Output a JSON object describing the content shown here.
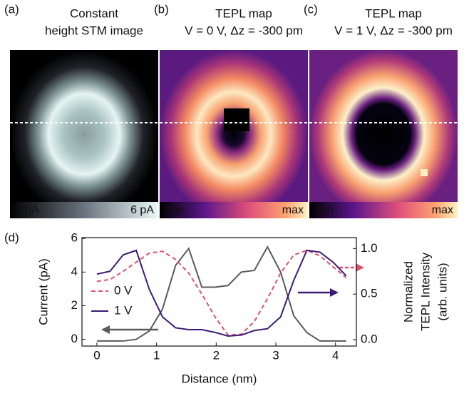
{
  "figure_panels": [
    {
      "label": "(a)",
      "title": [
        "Constant",
        "height STM image"
      ],
      "colorbar": [
        "0 pA",
        "6 pA"
      ]
    },
    {
      "label": "(b)",
      "title": [
        "TEPL map",
        "V = 0 V, Δz = -300 pm"
      ],
      "colorbar": [
        "min",
        "max"
      ]
    },
    {
      "label": "(c)",
      "title": [
        "TEPL map",
        "V = 1 V, Δz = -300 pm"
      ],
      "colorbar": [
        "min",
        "max"
      ]
    }
  ],
  "chart_data": {
    "type": "line",
    "panel_label": "(d)",
    "x_label": "Distance (nm)",
    "y_label": "Current (pA)",
    "y2_label": [
      "Normalized",
      "TEPL Intensity",
      "(arb. units)"
    ],
    "x": [
      0,
      0.22,
      0.44,
      0.66,
      0.88,
      1.1,
      1.32,
      1.54,
      1.76,
      1.98,
      2.2,
      2.42,
      2.64,
      2.86,
      3.08,
      3.3,
      3.52,
      3.74,
      3.96,
      4.18
    ],
    "series": [
      {
        "color": "#5a5a5a",
        "dash": false,
        "values": [
          -0.1,
          -0.1,
          -0.1,
          0.0,
          0.5,
          1.8,
          4.4,
          5.4,
          3.1,
          3.1,
          3.2,
          4.0,
          4.1,
          5.5,
          4.0,
          1.4,
          0.4,
          -0.1,
          -0.1,
          -0.1
        ]
      },
      {
        "name": "0 V",
        "color": "#e0506a",
        "dash": true,
        "axis": "y2",
        "values": [
          0.64,
          0.66,
          0.75,
          0.85,
          0.95,
          0.97,
          0.88,
          0.73,
          0.5,
          0.25,
          0.05,
          0.06,
          0.2,
          0.45,
          0.73,
          0.93,
          0.98,
          0.92,
          0.8,
          0.68
        ]
      },
      {
        "name": "1 V",
        "color": "#3d1a78",
        "dash": false,
        "axis": "y2",
        "values": [
          0.72,
          0.75,
          0.93,
          0.98,
          0.55,
          0.25,
          0.13,
          0.11,
          0.11,
          0.08,
          0.04,
          0.05,
          0.1,
          0.12,
          0.25,
          0.65,
          0.98,
          0.96,
          0.85,
          0.7
        ]
      }
    ],
    "xlim": [
      -0.25,
      4.35
    ],
    "xticks": [
      0,
      1,
      2,
      3,
      4
    ],
    "ylim": [
      -0.4,
      6.05
    ],
    "yticks": [
      0,
      2,
      4,
      6
    ],
    "y2lim": [
      -0.07,
      1.12
    ],
    "y2ticks": [
      {
        "value": 0,
        "label": "0.0"
      },
      0.5,
      {
        "value": 1,
        "label": "1.0"
      }
    ]
  }
}
